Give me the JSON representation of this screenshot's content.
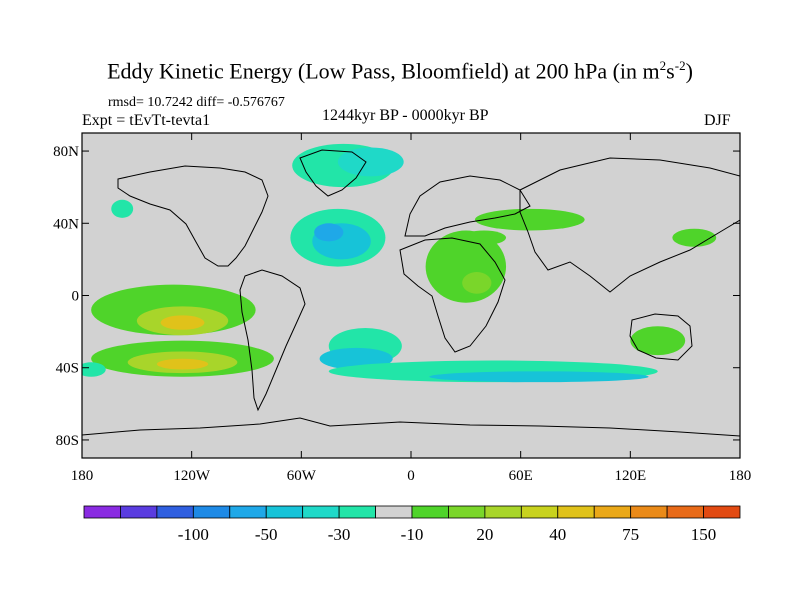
{
  "title": {
    "main": "Eddy Kinetic Energy (Low Pass, Bloomfield) at 200 hPa (in m",
    "sup1": "2",
    "mid": "s",
    "sup2": "-2",
    "end": ")"
  },
  "stats": "rmsd= 10.7242 diff= -0.576767",
  "experiment": "Expt = tEvTt-tevta1",
  "period": "1244kyr BP - 0000kyr BP",
  "season": "DJF",
  "axes": {
    "lon_ticks": [
      {
        "value": -180,
        "label": "180"
      },
      {
        "value": -120,
        "label": "120W"
      },
      {
        "value": -60,
        "label": "60W"
      },
      {
        "value": 0,
        "label": "0"
      },
      {
        "value": 60,
        "label": "60E"
      },
      {
        "value": 120,
        "label": "120E"
      },
      {
        "value": 180,
        "label": "180"
      }
    ],
    "lat_ticks": [
      {
        "value": 80,
        "label": "80N"
      },
      {
        "value": 40,
        "label": "40N"
      },
      {
        "value": 0,
        "label": "0"
      },
      {
        "value": -40,
        "label": "40S"
      },
      {
        "value": -80,
        "label": "80S"
      }
    ],
    "lon_range": [
      -180,
      180
    ],
    "lat_range": [
      -90,
      90
    ]
  },
  "colorbar": {
    "colors": [
      "#8a2be2",
      "#5a3ce0",
      "#2f5fe0",
      "#1e8ae6",
      "#1fa8e8",
      "#17c3d8",
      "#1fd9c8",
      "#22e5a8",
      "#d2d2d2",
      "#4fd42a",
      "#7ad62a",
      "#a8d52a",
      "#c8d21e",
      "#e0c21a",
      "#eaa818",
      "#ea8a18",
      "#e86a18",
      "#e24a12"
    ],
    "labels": [
      {
        "index": 2,
        "label": "-100"
      },
      {
        "index": 4,
        "label": "-50"
      },
      {
        "index": 6,
        "label": "-30"
      },
      {
        "index": 8,
        "label": "-10"
      },
      {
        "index": 10,
        "label": "20"
      },
      {
        "index": 12,
        "label": "40"
      },
      {
        "index": 14,
        "label": "75"
      },
      {
        "index": 16,
        "label": "150"
      }
    ]
  },
  "chart_data": {
    "type": "heatmap",
    "background_value_color": "#d2d2d2",
    "anomaly_regions": [
      {
        "lon": -37,
        "lat": 72,
        "rx": 28,
        "ry": 12,
        "color": "#22e5a8"
      },
      {
        "lon": -22,
        "lat": 74,
        "rx": 18,
        "ry": 8,
        "color": "#1fd9c8"
      },
      {
        "lon": -158,
        "lat": 48,
        "rx": 6,
        "ry": 5,
        "color": "#22e5a8"
      },
      {
        "lon": -40,
        "lat": 32,
        "rx": 26,
        "ry": 16,
        "color": "#22e5a8"
      },
      {
        "lon": -38,
        "lat": 30,
        "rx": 16,
        "ry": 10,
        "color": "#17c3d8"
      },
      {
        "lon": -45,
        "lat": 35,
        "rx": 8,
        "ry": 5,
        "color": "#1fa8e8"
      },
      {
        "lon": 30,
        "lat": 16,
        "rx": 22,
        "ry": 20,
        "color": "#4fd42a"
      },
      {
        "lon": 36,
        "lat": 7,
        "rx": 8,
        "ry": 6,
        "color": "#7ad62a"
      },
      {
        "lon": 65,
        "lat": 42,
        "rx": 30,
        "ry": 6,
        "color": "#4fd42a"
      },
      {
        "lon": 155,
        "lat": 32,
        "rx": 12,
        "ry": 5,
        "color": "#4fd42a"
      },
      {
        "lon": 40,
        "lat": 32,
        "rx": 12,
        "ry": 4,
        "color": "#4fd42a"
      },
      {
        "lon": -130,
        "lat": -8,
        "rx": 45,
        "ry": 14,
        "color": "#4fd42a"
      },
      {
        "lon": -125,
        "lat": -14,
        "rx": 25,
        "ry": 8,
        "color": "#a8d52a"
      },
      {
        "lon": -125,
        "lat": -15,
        "rx": 12,
        "ry": 4,
        "color": "#e0c21a"
      },
      {
        "lon": -125,
        "lat": -35,
        "rx": 50,
        "ry": 10,
        "color": "#4fd42a"
      },
      {
        "lon": -125,
        "lat": -37,
        "rx": 30,
        "ry": 6,
        "color": "#a8d52a"
      },
      {
        "lon": -125,
        "lat": -38,
        "rx": 14,
        "ry": 3,
        "color": "#e0c21a"
      },
      {
        "lon": -25,
        "lat": -28,
        "rx": 20,
        "ry": 10,
        "color": "#22e5a8"
      },
      {
        "lon": -30,
        "lat": -35,
        "rx": 20,
        "ry": 6,
        "color": "#17c3d8"
      },
      {
        "lon": 45,
        "lat": -42,
        "rx": 90,
        "ry": 6,
        "color": "#22e5a8"
      },
      {
        "lon": 70,
        "lat": -45,
        "rx": 60,
        "ry": 3,
        "color": "#17c3d8"
      },
      {
        "lon": 135,
        "lat": -25,
        "rx": 15,
        "ry": 8,
        "color": "#4fd42a"
      },
      {
        "lon": -175,
        "lat": -41,
        "rx": 8,
        "ry": 4,
        "color": "#22e5a8"
      }
    ]
  }
}
